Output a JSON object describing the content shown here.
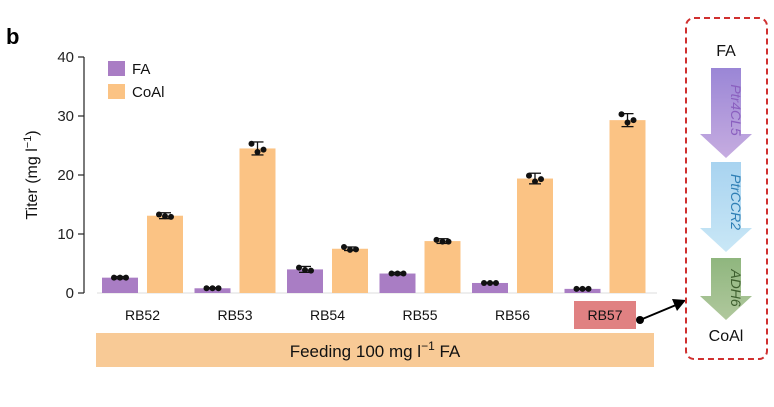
{
  "panel_label": "b",
  "chart_data": {
    "type": "bar",
    "title": "",
    "xlabel": "",
    "ylabel_main": "Titer (mg l",
    "ylabel_sup": "−1",
    "ylabel_end": ")",
    "ylim": [
      0,
      40
    ],
    "yticks": [
      "0",
      "10",
      "20",
      "30",
      "40"
    ],
    "categories": [
      "RB52",
      "RB53",
      "RB54",
      "RB55",
      "RB56",
      "RB57"
    ],
    "highlight_category": "RB57",
    "series": [
      {
        "name": "FA",
        "color": "#a97dc4",
        "values": [
          2.6,
          0.8,
          4.0,
          3.3,
          1.7,
          0.7
        ],
        "err": [
          0.2,
          0.1,
          0.5,
          0.2,
          0.1,
          0.1
        ],
        "points": [
          [
            2.6,
            2.6,
            2.6
          ],
          [
            0.8,
            0.8,
            0.8
          ],
          [
            4.3,
            3.9,
            3.8
          ],
          [
            3.3,
            3.3,
            3.3
          ],
          [
            1.7,
            1.7,
            1.7
          ],
          [
            0.7,
            0.7,
            0.7
          ]
        ]
      },
      {
        "name": "CoAl",
        "color": "#fbc384",
        "values": [
          13.1,
          24.5,
          7.5,
          8.8,
          19.4,
          29.3
        ],
        "err": [
          0.5,
          1.1,
          0.3,
          0.4,
          0.9,
          1.1
        ],
        "points": [
          [
            13.3,
            13.0,
            12.9
          ],
          [
            25.3,
            23.9,
            24.3
          ],
          [
            7.8,
            7.3,
            7.4
          ],
          [
            9.0,
            8.7,
            8.7
          ],
          [
            19.9,
            18.9,
            19.3
          ],
          [
            30.3,
            28.9,
            29.3
          ]
        ]
      }
    ]
  },
  "feeding": {
    "label_pre": "Feeding 100 mg l",
    "label_sup": "−1",
    "label_post": " FA"
  },
  "pathway": {
    "substrate": "FA",
    "product": "CoAl",
    "steps": [
      {
        "enzyme": "Ptr4CL5",
        "color": "#bfa7d9",
        "text_color": "#8a5fbf"
      },
      {
        "enzyme": "PtrCCR2",
        "color": "#b9dcef",
        "text_color": "#2f7fb5"
      },
      {
        "enzyme": "ADH6",
        "color": "#9fba8b",
        "text_color": "#3e5f2f"
      }
    ]
  },
  "colors": {
    "box_border": "#d0302f",
    "highlight_box": "#e08182",
    "feeding_band": "#f8ca96"
  }
}
